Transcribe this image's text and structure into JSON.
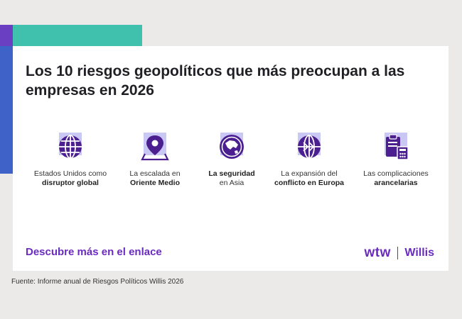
{
  "title": "Los 10 riesgos geopolíticos que más preocupan a las empresas en 2026",
  "risks": [
    {
      "icon": "globe-grid-icon",
      "line1": "Estados Unidos como",
      "line2_bold": "disruptor global"
    },
    {
      "icon": "map-pin-icon",
      "line1": "La escalada en",
      "line2_bold": "Oriente Medio"
    },
    {
      "icon": "globe-asia-icon",
      "line1_bold": "La seguridad",
      "line2": "en Asia"
    },
    {
      "icon": "globe-arrow-icon",
      "line1": "La expansión del",
      "line2_bold": "conflicto en Europa"
    },
    {
      "icon": "clipboard-calculator-icon",
      "line1": "Las complicaciones",
      "line2_bold": "arancelarias"
    }
  ],
  "cta": "Descubre más en el enlace",
  "logo": {
    "wtw": "wtw",
    "willis": "Willis"
  },
  "source": "Fuente: Informe anual de Riesgos Políticos Willis 2026",
  "colors": {
    "accent": "#6a2bbf",
    "icon_bg": "#c9c8f4",
    "teal": "#3fc1ae",
    "blue": "#3f62c9"
  }
}
